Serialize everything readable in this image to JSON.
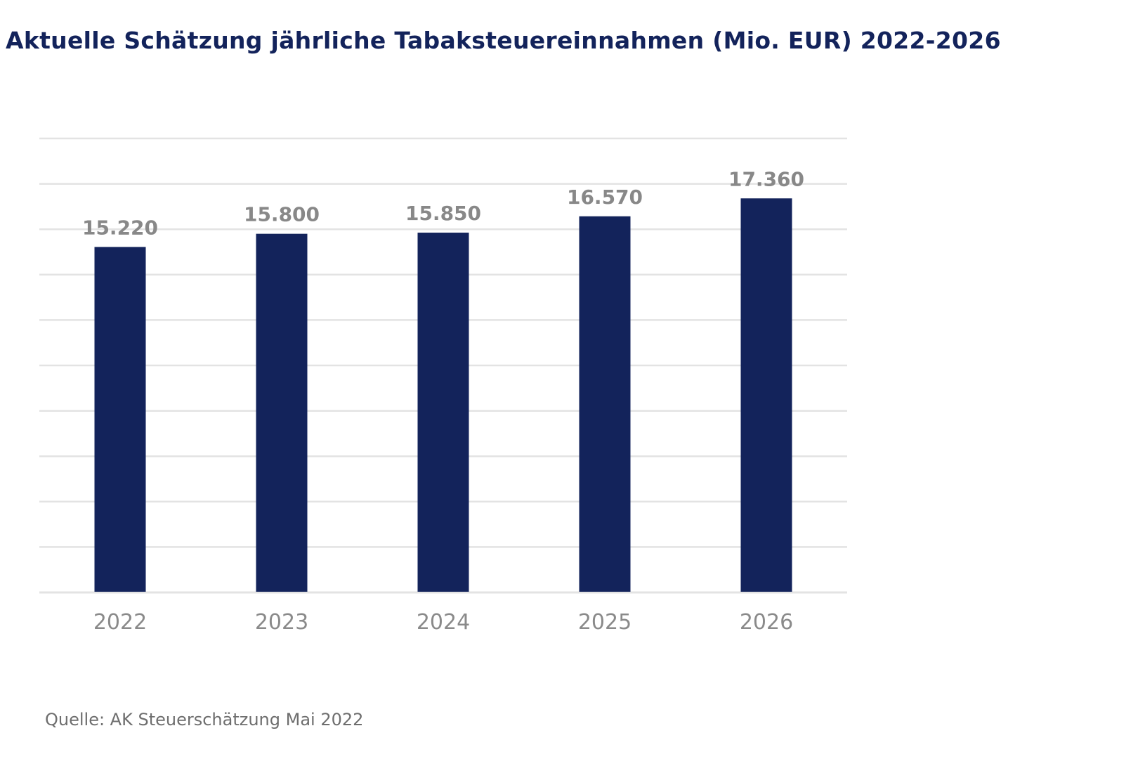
{
  "chart_data": {
    "type": "bar",
    "title": "Aktuelle Schätzung jährliche Tabaksteuereinnahmen (Mio. EUR) 2022-2026",
    "categories": [
      "2022",
      "2023",
      "2024",
      "2025",
      "2026"
    ],
    "values": [
      15220,
      15800,
      15850,
      16570,
      17360
    ],
    "data_labels": [
      "15.220",
      "15.800",
      "15.850",
      "16.570",
      "17.360"
    ],
    "xlabel": "",
    "ylabel": "",
    "ylim": [
      0,
      20000
    ],
    "grid": true,
    "legend": "none",
    "colors": {
      "bar": "#13235b",
      "grid": "#e3e3e3",
      "label": "#888888",
      "tick": "#8a8a8a",
      "title": "#13235b"
    }
  },
  "source": "Quelle: AK Steuerschätzung Mai 2022"
}
